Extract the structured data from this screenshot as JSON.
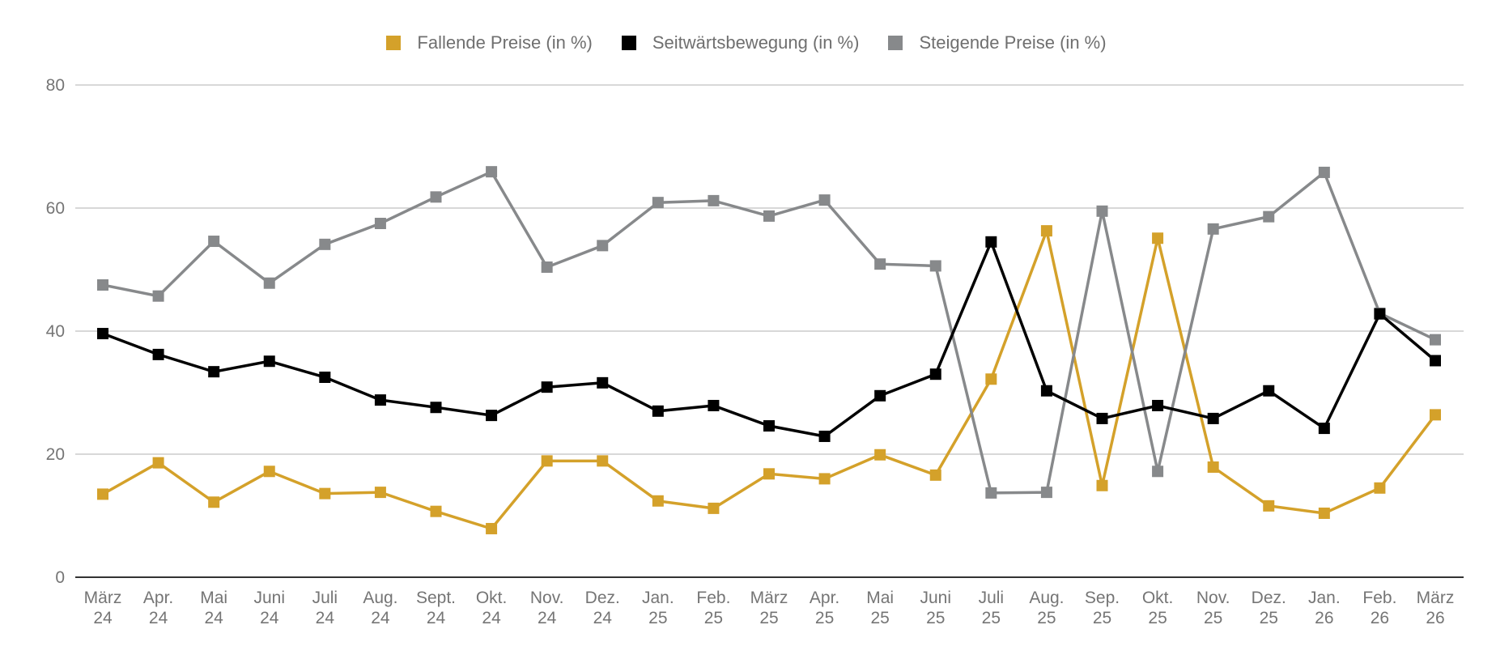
{
  "chart_data": {
    "type": "line",
    "title": "",
    "xlabel": "",
    "ylabel": "",
    "ylim": [
      0,
      80
    ],
    "yticks": [
      "0",
      "20",
      "40",
      "60",
      "80"
    ],
    "grid": true,
    "legend_position": "top",
    "categories": [
      [
        "März",
        "24"
      ],
      [
        "Apr.",
        "24"
      ],
      [
        "Mai",
        "24"
      ],
      [
        "Juni",
        "24"
      ],
      [
        "Juli",
        "24"
      ],
      [
        "Aug.",
        "24"
      ],
      [
        "Sept.",
        "24"
      ],
      [
        "Okt.",
        "24"
      ],
      [
        "Nov.",
        "24"
      ],
      [
        "Dez.",
        "24"
      ],
      [
        "Jan.",
        "25"
      ],
      [
        "Feb.",
        "25"
      ],
      [
        "März",
        "25"
      ],
      [
        "Apr.",
        "25"
      ],
      [
        "Mai",
        "25"
      ],
      [
        "Juni",
        "25"
      ],
      [
        "Juli",
        "25"
      ],
      [
        "Aug.",
        "25"
      ],
      [
        "Sep.",
        "25"
      ],
      [
        "Okt.",
        "25"
      ],
      [
        "Nov.",
        "25"
      ],
      [
        "Dez.",
        "25"
      ],
      [
        "Jan.",
        "26"
      ],
      [
        "Feb.",
        "26"
      ],
      [
        "März",
        "26"
      ]
    ],
    "series": [
      {
        "name": "Fallende Preise (in %)",
        "color": "#d4a12a",
        "values": [
          13.5,
          18.6,
          12.2,
          17.2,
          13.6,
          13.8,
          10.7,
          7.9,
          18.9,
          18.9,
          12.4,
          11.2,
          16.8,
          16.0,
          19.9,
          16.6,
          32.2,
          56.3,
          14.9,
          55.1,
          17.9,
          11.6,
          10.4,
          14.5,
          26.4
        ]
      },
      {
        "name": "Seitwärtsbewegung (in %)",
        "color": "#000000",
        "values": [
          39.6,
          36.2,
          33.4,
          35.1,
          32.5,
          28.8,
          27.6,
          26.3,
          30.9,
          31.6,
          27.0,
          27.9,
          24.6,
          22.9,
          29.5,
          33.0,
          54.5,
          30.3,
          25.8,
          27.9,
          25.8,
          30.3,
          24.2,
          42.8,
          35.2
        ]
      },
      {
        "name": "Steigende Preise (in %)",
        "color": "#87898b",
        "values": [
          47.5,
          45.7,
          54.6,
          47.8,
          54.1,
          57.5,
          61.8,
          65.9,
          50.4,
          53.9,
          60.9,
          61.2,
          58.7,
          61.3,
          50.9,
          50.6,
          13.7,
          13.8,
          59.5,
          17.2,
          56.6,
          58.6,
          65.8,
          42.9,
          38.6
        ]
      }
    ]
  }
}
